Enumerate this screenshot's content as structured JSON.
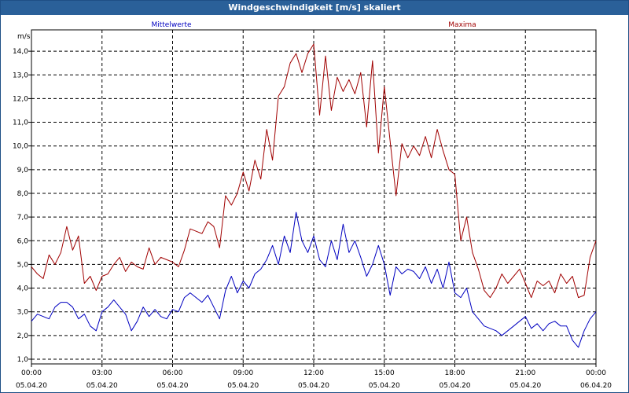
{
  "window": {
    "title": "Windgeschwindigkeit [m/s] skaliert"
  },
  "chart_data": {
    "type": "line",
    "title": "Windgeschwindigkeit [m/s] skaliert",
    "ylabel": "m/s",
    "xlabel": "",
    "ylim": [
      0.8,
      14.9
    ],
    "xlim": [
      0,
      24
    ],
    "grid": true,
    "legend": "top",
    "y_ticks": [
      "1,0",
      "2,0",
      "3,0",
      "4,0",
      "5,0",
      "6,0",
      "7,0",
      "8,0",
      "9,0",
      "10,0",
      "11,0",
      "12,0",
      "13,0",
      "14,0"
    ],
    "x_ticks": [
      {
        "time": "00:00",
        "date": "05.04.20"
      },
      {
        "time": "03:00",
        "date": "05.04.20"
      },
      {
        "time": "06:00",
        "date": "05.04.20"
      },
      {
        "time": "09:00",
        "date": "05.04.20"
      },
      {
        "time": "12:00",
        "date": "05.04.20"
      },
      {
        "time": "15:00",
        "date": "05.04.20"
      },
      {
        "time": "18:00",
        "date": "05.04.20"
      },
      {
        "time": "21:00",
        "date": "05.04.20"
      },
      {
        "time": "00:00",
        "date": "06.04.20"
      }
    ],
    "series": [
      {
        "name": "Mittelwerte",
        "color": "#0000c0",
        "points": [
          [
            0,
            2.6
          ],
          [
            0.25,
            2.9
          ],
          [
            0.5,
            2.8
          ],
          [
            0.75,
            2.7
          ],
          [
            1,
            3.2
          ],
          [
            1.25,
            3.4
          ],
          [
            1.5,
            3.4
          ],
          [
            1.75,
            3.2
          ],
          [
            2,
            2.7
          ],
          [
            2.25,
            2.9
          ],
          [
            2.5,
            2.4
          ],
          [
            2.75,
            2.2
          ],
          [
            3,
            3.0
          ],
          [
            3.25,
            3.2
          ],
          [
            3.5,
            3.5
          ],
          [
            3.75,
            3.2
          ],
          [
            4,
            2.9
          ],
          [
            4.25,
            2.2
          ],
          [
            4.5,
            2.6
          ],
          [
            4.75,
            3.2
          ],
          [
            5,
            2.8
          ],
          [
            5.25,
            3.1
          ],
          [
            5.5,
            2.8
          ],
          [
            5.75,
            2.7
          ],
          [
            6,
            3.1
          ],
          [
            6.25,
            3.0
          ],
          [
            6.5,
            3.6
          ],
          [
            6.75,
            3.8
          ],
          [
            7,
            3.6
          ],
          [
            7.25,
            3.4
          ],
          [
            7.5,
            3.7
          ],
          [
            7.75,
            3.2
          ],
          [
            8,
            2.7
          ],
          [
            8.25,
            3.9
          ],
          [
            8.5,
            4.5
          ],
          [
            8.75,
            3.8
          ],
          [
            9,
            4.3
          ],
          [
            9.25,
            4.0
          ],
          [
            9.5,
            4.6
          ],
          [
            9.75,
            4.8
          ],
          [
            10,
            5.2
          ],
          [
            10.25,
            5.8
          ],
          [
            10.5,
            5.0
          ],
          [
            10.75,
            6.2
          ],
          [
            11,
            5.5
          ],
          [
            11.25,
            7.2
          ],
          [
            11.5,
            6.0
          ],
          [
            11.75,
            5.5
          ],
          [
            12,
            6.2
          ],
          [
            12.25,
            5.2
          ],
          [
            12.5,
            4.9
          ],
          [
            12.75,
            6.0
          ],
          [
            13,
            5.2
          ],
          [
            13.25,
            6.7
          ],
          [
            13.5,
            5.5
          ],
          [
            13.75,
            6.0
          ],
          [
            14,
            5.3
          ],
          [
            14.25,
            4.5
          ],
          [
            14.5,
            5.0
          ],
          [
            14.75,
            5.8
          ],
          [
            15,
            5.0
          ],
          [
            15.25,
            3.7
          ],
          [
            15.5,
            4.9
          ],
          [
            15.75,
            4.6
          ],
          [
            16,
            4.8
          ],
          [
            16.25,
            4.7
          ],
          [
            16.5,
            4.4
          ],
          [
            16.75,
            4.9
          ],
          [
            17,
            4.2
          ],
          [
            17.25,
            4.8
          ],
          [
            17.5,
            4.0
          ],
          [
            17.75,
            5.1
          ],
          [
            18,
            3.8
          ],
          [
            18.25,
            3.6
          ],
          [
            18.5,
            4.0
          ],
          [
            18.75,
            3.0
          ],
          [
            19,
            2.7
          ],
          [
            19.25,
            2.4
          ],
          [
            19.5,
            2.3
          ],
          [
            19.75,
            2.2
          ],
          [
            20,
            2.0
          ],
          [
            20.25,
            2.2
          ],
          [
            20.5,
            2.4
          ],
          [
            20.75,
            2.6
          ],
          [
            21,
            2.8
          ],
          [
            21.25,
            2.3
          ],
          [
            21.5,
            2.5
          ],
          [
            21.75,
            2.2
          ],
          [
            22,
            2.5
          ],
          [
            22.25,
            2.6
          ],
          [
            22.5,
            2.4
          ],
          [
            22.75,
            2.4
          ],
          [
            23,
            1.8
          ],
          [
            23.25,
            1.5
          ],
          [
            23.5,
            2.2
          ],
          [
            23.75,
            2.7
          ],
          [
            24,
            3.0
          ]
        ]
      },
      {
        "name": "Maxima",
        "color": "#a00000",
        "points": [
          [
            0,
            4.9
          ],
          [
            0.25,
            4.6
          ],
          [
            0.5,
            4.4
          ],
          [
            0.75,
            5.4
          ],
          [
            1,
            5.0
          ],
          [
            1.25,
            5.5
          ],
          [
            1.5,
            6.6
          ],
          [
            1.75,
            5.6
          ],
          [
            2,
            6.2
          ],
          [
            2.25,
            4.2
          ],
          [
            2.5,
            4.5
          ],
          [
            2.75,
            3.9
          ],
          [
            3,
            4.5
          ],
          [
            3.25,
            4.6
          ],
          [
            3.5,
            5.0
          ],
          [
            3.75,
            5.3
          ],
          [
            4,
            4.7
          ],
          [
            4.25,
            5.1
          ],
          [
            4.5,
            4.9
          ],
          [
            4.75,
            4.8
          ],
          [
            5,
            5.7
          ],
          [
            5.25,
            5.0
          ],
          [
            5.5,
            5.3
          ],
          [
            5.75,
            5.2
          ],
          [
            6,
            5.1
          ],
          [
            6.25,
            4.9
          ],
          [
            6.5,
            5.6
          ],
          [
            6.75,
            6.5
          ],
          [
            7,
            6.4
          ],
          [
            7.25,
            6.3
          ],
          [
            7.5,
            6.8
          ],
          [
            7.75,
            6.6
          ],
          [
            8,
            5.7
          ],
          [
            8.25,
            7.9
          ],
          [
            8.5,
            7.5
          ],
          [
            8.75,
            8.0
          ],
          [
            9,
            8.9
          ],
          [
            9.25,
            8.1
          ],
          [
            9.5,
            9.4
          ],
          [
            9.75,
            8.6
          ],
          [
            10,
            10.7
          ],
          [
            10.25,
            9.4
          ],
          [
            10.5,
            12.1
          ],
          [
            10.75,
            12.5
          ],
          [
            11,
            13.5
          ],
          [
            11.25,
            13.9
          ],
          [
            11.5,
            13.1
          ],
          [
            11.75,
            13.9
          ],
          [
            12,
            14.3
          ],
          [
            12.25,
            11.3
          ],
          [
            12.5,
            13.8
          ],
          [
            12.75,
            11.5
          ],
          [
            13,
            12.9
          ],
          [
            13.25,
            12.3
          ],
          [
            13.5,
            12.8
          ],
          [
            13.75,
            12.2
          ],
          [
            14,
            13.1
          ],
          [
            14.25,
            10.8
          ],
          [
            14.5,
            13.6
          ],
          [
            14.75,
            9.7
          ],
          [
            15,
            12.5
          ],
          [
            15.25,
            10.2
          ],
          [
            15.5,
            7.9
          ],
          [
            15.75,
            10.1
          ],
          [
            16,
            9.5
          ],
          [
            16.25,
            10.0
          ],
          [
            16.5,
            9.6
          ],
          [
            16.75,
            10.4
          ],
          [
            17,
            9.5
          ],
          [
            17.25,
            10.7
          ],
          [
            17.5,
            9.8
          ],
          [
            17.75,
            9.0
          ],
          [
            18,
            8.8
          ],
          [
            18.25,
            6.0
          ],
          [
            18.5,
            7.0
          ],
          [
            18.75,
            5.5
          ],
          [
            19,
            4.8
          ],
          [
            19.25,
            3.9
          ],
          [
            19.5,
            3.6
          ],
          [
            19.75,
            4.0
          ],
          [
            20,
            4.6
          ],
          [
            20.25,
            4.2
          ],
          [
            20.5,
            4.5
          ],
          [
            20.75,
            4.8
          ],
          [
            21,
            4.2
          ],
          [
            21.25,
            3.6
          ],
          [
            21.5,
            4.3
          ],
          [
            21.75,
            4.1
          ],
          [
            22,
            4.3
          ],
          [
            22.25,
            3.8
          ],
          [
            22.5,
            4.6
          ],
          [
            22.75,
            4.2
          ],
          [
            23,
            4.5
          ],
          [
            23.25,
            3.6
          ],
          [
            23.5,
            3.7
          ],
          [
            23.75,
            5.3
          ],
          [
            24,
            6.0
          ]
        ]
      }
    ]
  }
}
